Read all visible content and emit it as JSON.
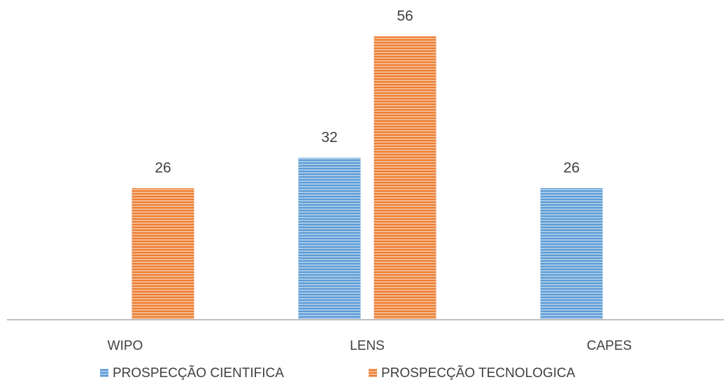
{
  "chart_data": {
    "type": "bar",
    "categories": [
      "WIPO",
      "LENS",
      "CAPES"
    ],
    "series": [
      {
        "name": "PROSPECÇÃO CIENTIFICA",
        "color": "#5b9bd5",
        "values": [
          null,
          32,
          26
        ]
      },
      {
        "name": "PROSPECÇÃO TECNOLOGICA",
        "color": "#ed7d31",
        "values": [
          26,
          56,
          null
        ]
      }
    ],
    "legend": "bottom"
  }
}
